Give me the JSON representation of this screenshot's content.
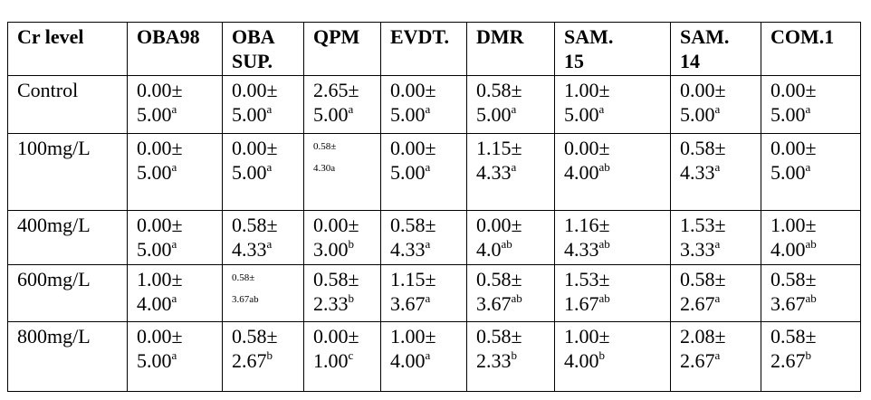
{
  "table": {
    "header": [
      "Cr level",
      "OBA98",
      "OBA SUP.",
      "QPM",
      "EVDT.",
      "DMR",
      "SAM. 15",
      "SAM. 14",
      "COM.1"
    ],
    "rows": [
      {
        "label": "Control",
        "cells": [
          {
            "top": "0.00±",
            "bottom": "5.00",
            "sup": "a"
          },
          {
            "top": "0.00±",
            "bottom": "5.00",
            "sup": "a"
          },
          {
            "top": "2.65±",
            "bottom": "5.00",
            "sup": "a"
          },
          {
            "top": "0.00±",
            "bottom": "5.00",
            "sup": "a"
          },
          {
            "top": "0.58±",
            "bottom": "5.00",
            "sup": "a"
          },
          {
            "top": "1.00±",
            "bottom": "5.00",
            "sup": "a"
          },
          {
            "top": "0.00±",
            "bottom": "5.00",
            "sup": "a"
          },
          {
            "top": "0.00±",
            "bottom": "5.00",
            "sup": "a"
          }
        ]
      },
      {
        "label": "100mg/L",
        "cells": [
          {
            "top": "0.00±",
            "bottom": "5.00",
            "sup": "a"
          },
          {
            "top": "0.00±",
            "bottom": "5.00",
            "sup": "a"
          },
          {
            "top": "0.58±",
            "bottom": "4.30a",
            "small": true
          },
          {
            "top": "0.00±",
            "bottom": "5.00",
            "sup": "a"
          },
          {
            "top": "1.15±",
            "bottom": "4.33",
            "sup": "a"
          },
          {
            "top": "0.00±",
            "bottom": "4.00",
            "sup": "ab"
          },
          {
            "top": "0.58±",
            "bottom": "4.33",
            "sup": "a"
          },
          {
            "top": "0.00±",
            "bottom": "5.00",
            "sup": "a"
          }
        ]
      },
      {
        "label": "400mg/L",
        "cells": [
          {
            "top": "0.00±",
            "bottom": "5.00",
            "sup": "a"
          },
          {
            "top": "0.58±",
            "bottom": "4.33",
            "sup": "a"
          },
          {
            "top": "0.00±",
            "bottom": "3.00",
            "sup": "b"
          },
          {
            "top": "0.58±",
            "bottom": "4.33",
            "sup": "a"
          },
          {
            "top": "0.00±",
            "bottom": "4.0",
            "sup": "ab"
          },
          {
            "top": "1.16±",
            "bottom": "4.33",
            "sup": "ab"
          },
          {
            "top": "1.53±",
            "bottom": "3.33",
            "sup": "a"
          },
          {
            "top": "1.00±",
            "bottom": "4.00",
            "sup": "ab"
          }
        ]
      },
      {
        "label": "600mg/L",
        "cells": [
          {
            "top": "1.00±",
            "bottom": "4.00",
            "sup": "a"
          },
          {
            "top": "0.58±",
            "bottom": "3.67ab",
            "small": true
          },
          {
            "top": "0.58±",
            "bottom": "2.33",
            "sup": "b"
          },
          {
            "top": "1.15±",
            "bottom": "3.67",
            "sup": "a"
          },
          {
            "top": "0.58±",
            "bottom": "3.67",
            "sup": "ab"
          },
          {
            "top": "1.53±",
            "bottom": "1.67",
            "sup": "ab"
          },
          {
            "top": "0.58±",
            "bottom": "2.67",
            "sup": "a"
          },
          {
            "top": "0.58±",
            "bottom": "3.67",
            "sup": "ab"
          }
        ]
      },
      {
        "label": "800mg/L",
        "cells": [
          {
            "top": "0.00±",
            "bottom": "5.00",
            "sup": "a"
          },
          {
            "top": "0.58±",
            "bottom": "2.67",
            "sup": "b"
          },
          {
            "top": "0.00±",
            "bottom": "1.00",
            "sup": "c"
          },
          {
            "top": "1.00±",
            "bottom": "4.00",
            "sup": "a"
          },
          {
            "top": "0.58±",
            "bottom": "2.33",
            "sup": "b"
          },
          {
            "top": "1.00±",
            "bottom": "4.00",
            "sup": "b"
          },
          {
            "top": "2.08±",
            "bottom": "2.67",
            "sup": "a"
          },
          {
            "top": "0.58±",
            "bottom": "2.67",
            "sup": "b"
          }
        ]
      }
    ]
  }
}
